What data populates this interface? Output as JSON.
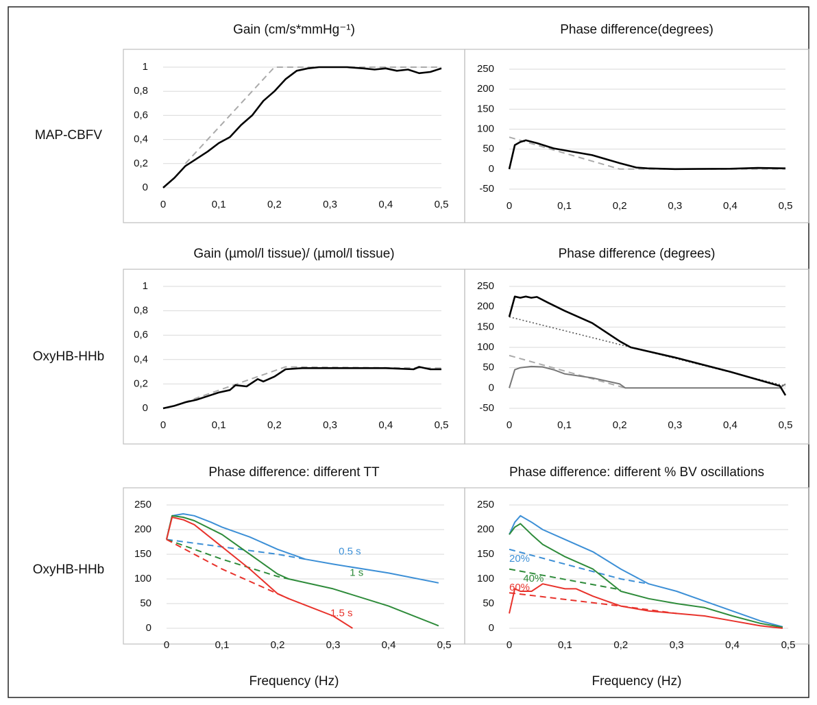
{
  "row_labels": [
    "MAP-CBFV",
    "OxyHB-HHb",
    "OxyHB-HHb"
  ],
  "chart_data": [
    {
      "type": "line",
      "title": "Gain (cm/s*mmHg⁻¹)",
      "xlim": [
        0,
        0.5
      ],
      "ylim": [
        0,
        1
      ],
      "grid": true,
      "xticks": [
        0,
        {
          "value": 0.1,
          "label": "0,1"
        },
        {
          "value": 0.2,
          "label": "0,2"
        },
        {
          "value": 0.3,
          "label": "0,3"
        },
        {
          "value": 0.4,
          "label": "0,4"
        },
        {
          "value": 0.5,
          "label": "0,5"
        }
      ],
      "yticks": [
        0,
        {
          "value": 0.2,
          "label": "0,2"
        },
        {
          "value": 0.4,
          "label": "0,4"
        },
        {
          "value": 0.6,
          "label": "0,6"
        },
        {
          "value": 0.8,
          "label": "0,8"
        },
        1
      ],
      "series": [
        {
          "color": "#aaaaaa",
          "dash": "dashed",
          "x": [
            0.04,
            0.2,
            0.5
          ],
          "values": [
            0.2,
            1,
            1
          ]
        },
        {
          "color": "#000000",
          "dash": "solid",
          "x": [
            0,
            0.02,
            0.04,
            0.06,
            0.08,
            0.1,
            0.12,
            0.14,
            0.16,
            0.18,
            0.2,
            0.22,
            0.24,
            0.26,
            0.28,
            0.3,
            0.33,
            0.36,
            0.38,
            0.4,
            0.42,
            0.44,
            0.46,
            0.48,
            0.5
          ],
          "values": [
            0,
            0.08,
            0.18,
            0.24,
            0.3,
            0.37,
            0.42,
            0.52,
            0.6,
            0.72,
            0.8,
            0.9,
            0.97,
            0.99,
            1,
            1,
            1,
            0.99,
            0.98,
            0.99,
            0.97,
            0.98,
            0.95,
            0.96,
            0.99
          ]
        }
      ]
    },
    {
      "type": "line",
      "title": "Phase difference(degrees)",
      "xlim": [
        0,
        0.5
      ],
      "ylim": [
        -50,
        250
      ],
      "grid": true,
      "xticks": [
        0,
        {
          "value": 0.1,
          "label": "0,1"
        },
        {
          "value": 0.2,
          "label": "0,2"
        },
        {
          "value": 0.3,
          "label": "0,3"
        },
        {
          "value": 0.4,
          "label": "0,4"
        },
        {
          "value": 0.5,
          "label": "0,5"
        }
      ],
      "yticks": [
        -50,
        0,
        50,
        100,
        150,
        200,
        250
      ],
      "series": [
        {
          "color": "#aaaaaa",
          "dash": "dashed",
          "x": [
            0,
            0.2,
            0.5
          ],
          "values": [
            80,
            0,
            0
          ]
        },
        {
          "color": "#000000",
          "dash": "solid",
          "x": [
            0,
            0.01,
            0.02,
            0.03,
            0.05,
            0.08,
            0.1,
            0.15,
            0.2,
            0.23,
            0.25,
            0.3,
            0.4,
            0.45,
            0.5
          ],
          "values": [
            0,
            60,
            68,
            72,
            65,
            52,
            47,
            35,
            15,
            4,
            2,
            0,
            1,
            3,
            2
          ]
        }
      ]
    },
    {
      "type": "line",
      "title": "Gain (µmol/l tissue)/ (µmol/l tissue)",
      "xlim": [
        0,
        0.5
      ],
      "ylim": [
        0,
        1
      ],
      "grid": true,
      "xticks": [
        0,
        {
          "value": 0.1,
          "label": "0,1"
        },
        {
          "value": 0.2,
          "label": "0,2"
        },
        {
          "value": 0.3,
          "label": "0,3"
        },
        {
          "value": 0.4,
          "label": "0,4"
        },
        {
          "value": 0.5,
          "label": "0,5"
        }
      ],
      "yticks": [
        0,
        {
          "value": 0.2,
          "label": "0,2"
        },
        {
          "value": 0.4,
          "label": "0,4"
        },
        {
          "value": 0.6,
          "label": "0,6"
        },
        {
          "value": 0.8,
          "label": "0,8"
        },
        1
      ],
      "series": [
        {
          "color": "#aaaaaa",
          "dash": "dashed",
          "x": [
            0.02,
            0.22,
            0.5
          ],
          "values": [
            0.02,
            0.34,
            0.33
          ]
        },
        {
          "color": "#000000",
          "dash": "solid",
          "x": [
            0,
            0.02,
            0.04,
            0.06,
            0.08,
            0.1,
            0.12,
            0.13,
            0.15,
            0.17,
            0.18,
            0.2,
            0.22,
            0.25,
            0.3,
            0.35,
            0.4,
            0.45,
            0.46,
            0.48,
            0.5
          ],
          "values": [
            0,
            0.02,
            0.05,
            0.07,
            0.1,
            0.13,
            0.15,
            0.19,
            0.18,
            0.24,
            0.22,
            0.26,
            0.32,
            0.33,
            0.33,
            0.33,
            0.33,
            0.32,
            0.34,
            0.32,
            0.32
          ]
        }
      ]
    },
    {
      "type": "line",
      "title": "Phase difference (degrees)",
      "xlim": [
        0,
        0.5
      ],
      "ylim": [
        -50,
        250
      ],
      "grid": true,
      "xticks": [
        0,
        {
          "value": 0.1,
          "label": "0,1"
        },
        {
          "value": 0.2,
          "label": "0,2"
        },
        {
          "value": 0.3,
          "label": "0,3"
        },
        {
          "value": 0.4,
          "label": "0,4"
        },
        {
          "value": 0.5,
          "label": "0,5"
        }
      ],
      "yticks": [
        -50,
        0,
        50,
        100,
        150,
        200,
        250
      ],
      "series": [
        {
          "color": "#aaaaaa",
          "dash": "dashed",
          "x": [
            0,
            0.21
          ],
          "values": [
            80,
            0
          ]
        },
        {
          "color": "#777777",
          "dash": "solid",
          "x": [
            0,
            0.01,
            0.02,
            0.04,
            0.06,
            0.08,
            0.1,
            0.15,
            0.2,
            0.21,
            0.3,
            0.49,
            0.5
          ],
          "values": [
            0,
            45,
            50,
            53,
            52,
            45,
            35,
            25,
            10,
            0,
            0,
            0,
            10
          ]
        },
        {
          "color": "#555555",
          "dash": "dotted",
          "x": [
            0,
            0.5
          ],
          "values": [
            175,
            5
          ]
        },
        {
          "color": "#000000",
          "dash": "solid",
          "x": [
            0,
            0.01,
            0.02,
            0.03,
            0.04,
            0.05,
            0.07,
            0.1,
            0.15,
            0.2,
            0.22,
            0.3,
            0.4,
            0.49,
            0.5
          ],
          "values": [
            175,
            225,
            222,
            225,
            222,
            224,
            210,
            190,
            160,
            115,
            100,
            75,
            40,
            5,
            -18
          ]
        }
      ]
    },
    {
      "type": "line",
      "title": "Phase difference:  different TT",
      "xlabel": "Frequency (Hz)",
      "xlim": [
        0,
        0.5
      ],
      "ylim": [
        0,
        250
      ],
      "grid": true,
      "xticks": [
        0,
        {
          "value": 0.1,
          "label": "0,1"
        },
        {
          "value": 0.2,
          "label": "0,2"
        },
        {
          "value": 0.3,
          "label": "0,3"
        },
        {
          "value": 0.4,
          "label": "0,4"
        },
        {
          "value": 0.5,
          "label": "0,5"
        }
      ],
      "yticks": [
        0,
        50,
        100,
        150,
        200,
        250
      ],
      "series": [
        {
          "color": "#3c8fd6",
          "dash": "dashed",
          "x": [
            0,
            0.1,
            0.2,
            0.25
          ],
          "values": [
            180,
            165,
            150,
            140
          ]
        },
        {
          "name": "0.5 s",
          "color": "#3c8fd6",
          "dash": "solid",
          "x": [
            0,
            0.01,
            0.03,
            0.05,
            0.08,
            0.1,
            0.15,
            0.2,
            0.25,
            0.3,
            0.4,
            0.49
          ],
          "values": [
            180,
            228,
            232,
            228,
            215,
            205,
            185,
            160,
            140,
            130,
            112,
            92
          ]
        },
        {
          "color": "#2e8b3a",
          "dash": "dashed",
          "x": [
            0,
            0.1,
            0.2,
            0.22
          ],
          "values": [
            180,
            140,
            105,
            100
          ]
        },
        {
          "name": "1 s",
          "color": "#2e8b3a",
          "dash": "solid",
          "x": [
            0,
            0.01,
            0.03,
            0.05,
            0.1,
            0.15,
            0.2,
            0.22,
            0.3,
            0.4,
            0.49
          ],
          "values": [
            180,
            228,
            225,
            218,
            190,
            150,
            110,
            100,
            80,
            45,
            5
          ]
        },
        {
          "color": "#e8322b",
          "dash": "dashed",
          "x": [
            0,
            0.1,
            0.2,
            0.22
          ],
          "values": [
            180,
            120,
            70,
            60
          ]
        },
        {
          "name": "1.5 s",
          "color": "#e8322b",
          "dash": "solid",
          "x": [
            0,
            0.01,
            0.03,
            0.05,
            0.1,
            0.15,
            0.2,
            0.22,
            0.3,
            0.335
          ],
          "values": [
            180,
            225,
            220,
            210,
            165,
            120,
            70,
            60,
            25,
            0
          ]
        }
      ]
    },
    {
      "type": "line",
      "title": "Phase difference: different % BV oscillations",
      "xlabel": "Frequency (Hz)",
      "xlim": [
        0,
        0.5
      ],
      "ylim": [
        0,
        250
      ],
      "grid": true,
      "xticks": [
        0,
        {
          "value": 0.1,
          "label": "0,1"
        },
        {
          "value": 0.2,
          "label": "0,2"
        },
        {
          "value": 0.3,
          "label": "0,3"
        },
        {
          "value": 0.4,
          "label": "0,4"
        },
        {
          "value": 0.5,
          "label": "0,5"
        }
      ],
      "yticks": [
        0,
        50,
        100,
        150,
        200,
        250
      ],
      "series": [
        {
          "color": "#3c8fd6",
          "dash": "dashed",
          "x": [
            0,
            0.2,
            0.25
          ],
          "values": [
            160,
            100,
            90
          ]
        },
        {
          "name": "20%",
          "color": "#3c8fd6",
          "dash": "solid",
          "x": [
            0,
            0.01,
            0.02,
            0.04,
            0.06,
            0.1,
            0.15,
            0.2,
            0.25,
            0.3,
            0.35,
            0.4,
            0.45,
            0.49
          ],
          "values": [
            190,
            215,
            228,
            215,
            200,
            180,
            155,
            120,
            90,
            75,
            55,
            35,
            15,
            3
          ]
        },
        {
          "color": "#2e8b3a",
          "dash": "dashed",
          "x": [
            0,
            0.2
          ],
          "values": [
            120,
            78
          ]
        },
        {
          "name": "40%",
          "color": "#2e8b3a",
          "dash": "solid",
          "x": [
            0,
            0.01,
            0.02,
            0.04,
            0.06,
            0.1,
            0.15,
            0.2,
            0.25,
            0.3,
            0.35,
            0.4,
            0.45,
            0.49
          ],
          "values": [
            190,
            205,
            212,
            190,
            170,
            145,
            120,
            75,
            60,
            50,
            42,
            25,
            10,
            2
          ]
        },
        {
          "color": "#e8322b",
          "dash": "dashed",
          "x": [
            0,
            0.2,
            0.3
          ],
          "values": [
            72,
            45,
            30
          ]
        },
        {
          "name": "60%",
          "color": "#e8322b",
          "dash": "solid",
          "x": [
            0,
            0.01,
            0.02,
            0.04,
            0.06,
            0.1,
            0.12,
            0.15,
            0.2,
            0.25,
            0.3,
            0.35,
            0.4,
            0.45,
            0.49
          ],
          "values": [
            30,
            80,
            75,
            75,
            90,
            80,
            80,
            65,
            45,
            35,
            30,
            25,
            15,
            5,
            0
          ]
        }
      ]
    }
  ]
}
